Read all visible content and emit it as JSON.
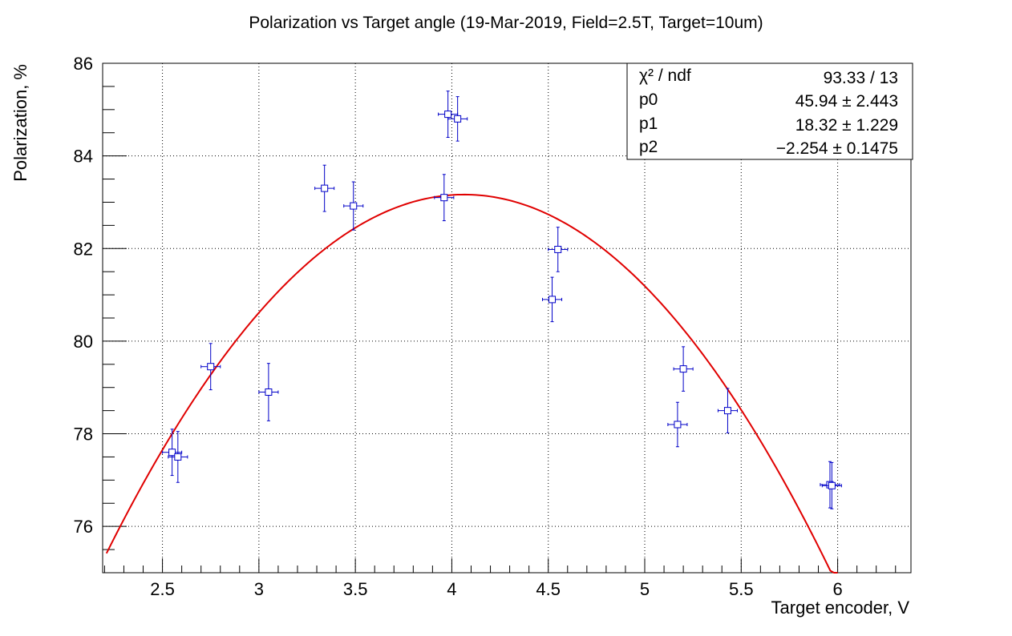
{
  "chart_data": {
    "type": "scatter",
    "title": "Polarization vs Target angle (19-Mar-2019, Field=2.5T, Target=10um)",
    "xlabel": "Target encoder, V",
    "ylabel": "Polarization, %",
    "xlim": [
      2.19,
      6.38
    ],
    "ylim": [
      75,
      86
    ],
    "x_ticks": [
      "2.5",
      "3",
      "3.5",
      "4",
      "4.5",
      "5",
      "5.5",
      "6"
    ],
    "y_ticks": [
      "76",
      "78",
      "80",
      "82",
      "84",
      "86"
    ],
    "grid": true,
    "series": [
      {
        "points": [
          {
            "x": 2.55,
            "y": 77.6,
            "xerr": 0.05,
            "yerr": 0.5
          },
          {
            "x": 2.58,
            "y": 77.5,
            "xerr": 0.05,
            "yerr": 0.55
          },
          {
            "x": 2.75,
            "y": 79.45,
            "xerr": 0.05,
            "yerr": 0.5
          },
          {
            "x": 3.05,
            "y": 78.9,
            "xerr": 0.05,
            "yerr": 0.62
          },
          {
            "x": 3.34,
            "y": 83.3,
            "xerr": 0.05,
            "yerr": 0.5
          },
          {
            "x": 3.49,
            "y": 82.92,
            "xerr": 0.05,
            "yerr": 0.52
          },
          {
            "x": 3.96,
            "y": 83.1,
            "xerr": 0.05,
            "yerr": 0.5
          },
          {
            "x": 3.98,
            "y": 84.9,
            "xerr": 0.05,
            "yerr": 0.5
          },
          {
            "x": 4.03,
            "y": 84.8,
            "xerr": 0.05,
            "yerr": 0.48
          },
          {
            "x": 4.52,
            "y": 80.9,
            "xerr": 0.05,
            "yerr": 0.48
          },
          {
            "x": 4.55,
            "y": 81.98,
            "xerr": 0.05,
            "yerr": 0.48
          },
          {
            "x": 5.17,
            "y": 78.2,
            "xerr": 0.05,
            "yerr": 0.48
          },
          {
            "x": 5.2,
            "y": 79.4,
            "xerr": 0.05,
            "yerr": 0.48
          },
          {
            "x": 5.43,
            "y": 78.5,
            "xerr": 0.05,
            "yerr": 0.48
          },
          {
            "x": 5.96,
            "y": 76.9,
            "xerr": 0.05,
            "yerr": 0.5
          },
          {
            "x": 5.97,
            "y": 76.88,
            "xerr": 0.05,
            "yerr": 0.5
          }
        ]
      }
    ],
    "fit": {
      "function": "pol2",
      "p0": 45.94,
      "p1": 18.32,
      "p2": -2.254,
      "x_range": [
        2.21,
        6.0
      ]
    }
  },
  "stats_box": {
    "rows": [
      {
        "label": "χ² / ndf",
        "value": "93.33 / 13"
      },
      {
        "label": "p0",
        "value": "45.94 ± 2.443"
      },
      {
        "label": "p1",
        "value": "18.32 ± 1.229"
      },
      {
        "label": "p2",
        "value": "−2.254 ± 0.1475"
      }
    ]
  },
  "colors": {
    "points": "#0000c8",
    "fit_line": "#e00000",
    "grid": "#000000",
    "axis": "#000000"
  }
}
